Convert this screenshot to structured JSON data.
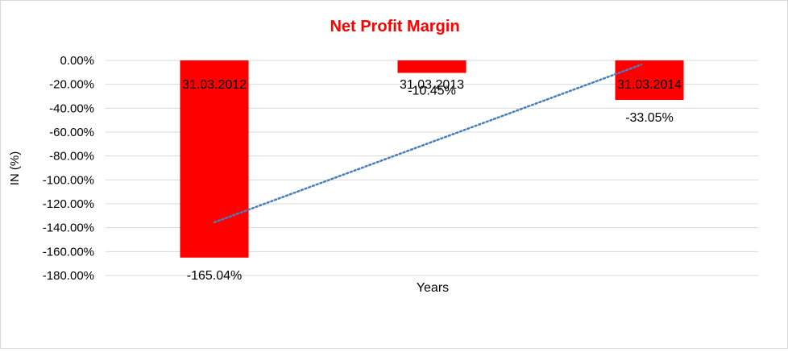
{
  "chart_data": {
    "type": "bar",
    "title": "Net Profit Margin",
    "xlabel": "Years",
    "ylabel": "IN (%)",
    "categories": [
      "31.03.2012",
      "31.03.2013",
      "31.03.2014"
    ],
    "values": [
      -165.04,
      -10.45,
      -33.05
    ],
    "data_labels": [
      "-165.04%",
      "-10.45%",
      "-33.05%"
    ],
    "ylim": [
      -180,
      0
    ],
    "yticks": [
      0,
      -20,
      -40,
      -60,
      -80,
      -100,
      -120,
      -140,
      -160,
      -180
    ],
    "ytick_labels": [
      "0.00%",
      "-20.00%",
      "-40.00%",
      "-60.00%",
      "-80.00%",
      "-100.00%",
      "-120.00%",
      "-140.00%",
      "-160.00%",
      "-180.00%"
    ],
    "trendline": {
      "type": "linear",
      "style": "dotted",
      "color": "#4a7ebb"
    },
    "grid": true,
    "legend": "none",
    "colors": {
      "title": "#ff0000",
      "bar": "#ff0000",
      "grid": "#d9d9d9",
      "text": "#000000"
    }
  }
}
